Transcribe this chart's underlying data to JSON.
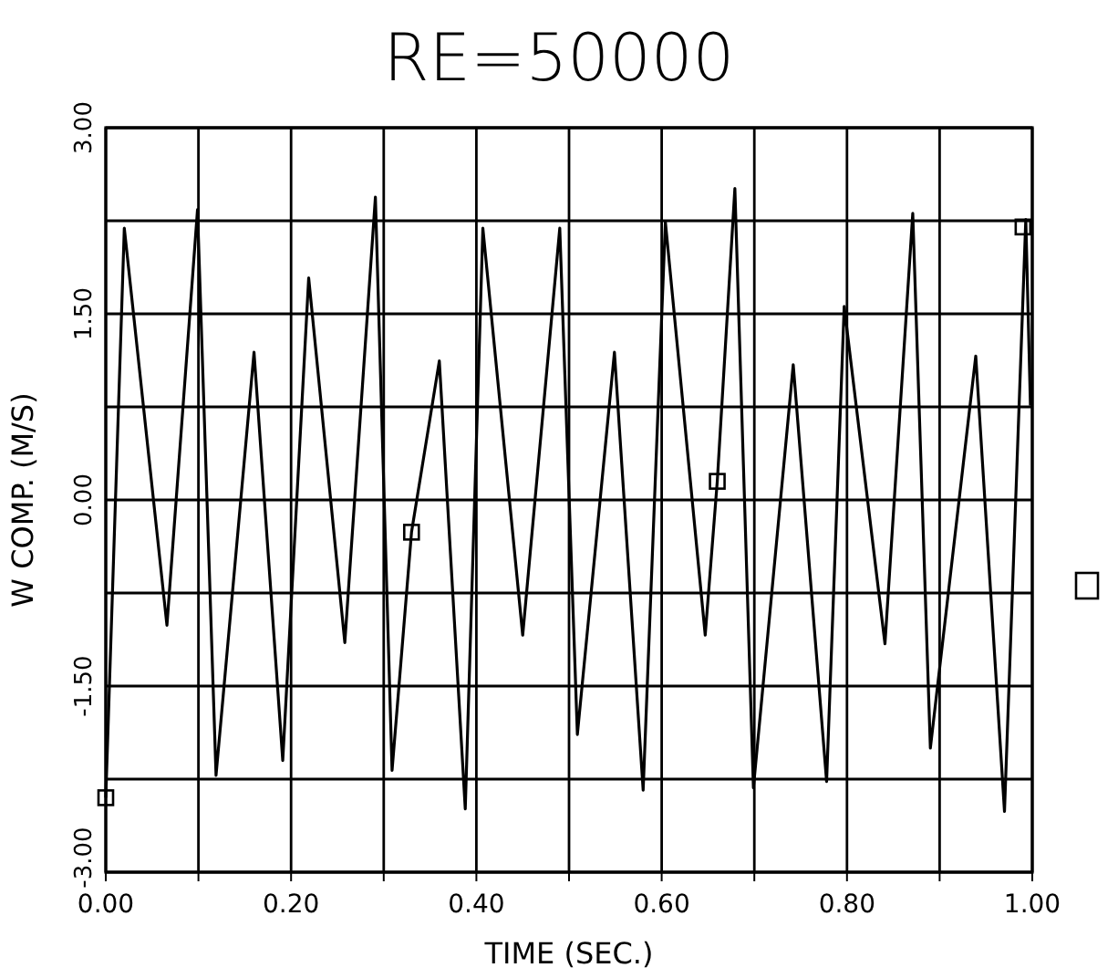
{
  "chart_data": {
    "type": "line",
    "title": "RE=50000",
    "xlabel": "TIME (SEC.)",
    "ylabel": "W COMP. (M/S)",
    "xlim": [
      0,
      1
    ],
    "ylim": [
      -3,
      3
    ],
    "xticks": [
      {
        "value": 0,
        "label": "0.00"
      },
      {
        "value": 0.1,
        "label": null
      },
      {
        "value": 0.2,
        "label": "0.20"
      },
      {
        "value": 0.3,
        "label": null
      },
      {
        "value": 0.4,
        "label": "0.40"
      },
      {
        "value": 0.5,
        "label": null
      },
      {
        "value": 0.6,
        "label": "0.60"
      },
      {
        "value": 0.7,
        "label": null
      },
      {
        "value": 0.8,
        "label": "0.80"
      },
      {
        "value": 0.9,
        "label": null
      },
      {
        "value": 1,
        "label": "1.00"
      }
    ],
    "yticks": [
      {
        "value": -3,
        "label": "-3.00"
      },
      {
        "value": -2.25,
        "label": null
      },
      {
        "value": -1.5,
        "label": "-1.50"
      },
      {
        "value": -0.75,
        "label": null
      },
      {
        "value": 0,
        "label": "0.00"
      },
      {
        "value": 0.75,
        "label": null
      },
      {
        "value": 1.5,
        "label": "1.50"
      },
      {
        "value": 2.25,
        "label": null
      },
      {
        "value": 3,
        "label": "3.00"
      }
    ],
    "grid": true,
    "line_style": "solid",
    "series": [
      {
        "type": "line",
        "color": "#000000",
        "marker": "none",
        "x": [
          0,
          0.02,
          0.066,
          0.099,
          0.119,
          0.16,
          0.191,
          0.219,
          0.258,
          0.291,
          0.309,
          0.33,
          0.36,
          0.388,
          0.407,
          0.45,
          0.49,
          0.509,
          0.549,
          0.58,
          0.604,
          0.647,
          0.66,
          0.679,
          0.699,
          0.742,
          0.778,
          0.797,
          0.841,
          0.871,
          0.89,
          0.939,
          0.97,
          0.993,
          0.998
        ],
        "values": [
          -2.4,
          2.19,
          -1.01,
          2.34,
          -2.22,
          1.19,
          -2.1,
          1.79,
          -1.15,
          2.44,
          -2.18,
          -0.26,
          1.12,
          -2.49,
          2.19,
          -1.09,
          2.19,
          -1.89,
          1.19,
          -2.34,
          2.24,
          -1.09,
          0.15,
          2.51,
          -2.32,
          1.09,
          -2.27,
          1.56,
          -1.16,
          2.31,
          -2.0,
          1.16,
          -2.51,
          2.26,
          0.76
        ]
      },
      {
        "type": "scatter",
        "color": "#000000",
        "marker": "square",
        "x": [
          0,
          0.33,
          0.66,
          0.99
        ],
        "values": [
          -2.4,
          -0.26,
          0.15,
          2.2
        ]
      }
    ]
  }
}
